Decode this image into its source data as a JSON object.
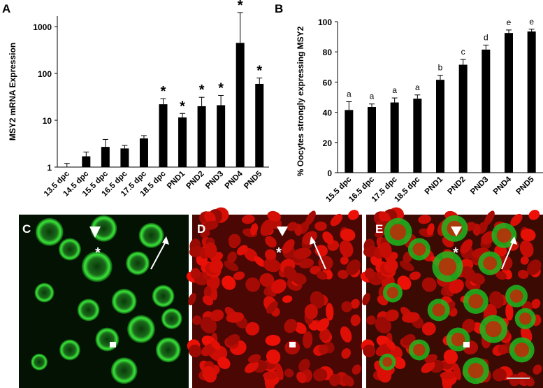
{
  "panels": {
    "a": "A",
    "b": "B",
    "c": "C",
    "d": "D",
    "e": "E"
  },
  "chart_data": [
    {
      "id": "A",
      "type": "bar",
      "ylabel": "MSY2  mRNA Expression",
      "yscale": "log",
      "ylim": [
        1,
        2000
      ],
      "yticks": [
        1,
        10,
        100,
        1000
      ],
      "categories": [
        "13.5 dpc",
        "14.5 dpc",
        "15.5 dpc",
        "16.5 dpc",
        "17.5 dpc",
        "18.5 dpc",
        "PND1",
        "PND2",
        "PND3",
        "PND4",
        "PND5"
      ],
      "values": [
        1.0,
        1.7,
        2.7,
        2.5,
        4.1,
        22,
        11.5,
        20,
        21,
        450,
        60
      ],
      "errors": [
        0.2,
        0.4,
        1.2,
        0.4,
        0.6,
        7,
        2.5,
        11,
        13,
        1550,
        20
      ],
      "annotations": [
        "",
        "",
        "",
        "",
        "",
        "*",
        "*",
        "*",
        "*",
        "*",
        "*"
      ],
      "bar_color": "#000000"
    },
    {
      "id": "B",
      "type": "bar",
      "ylabel": "% Oocytes strongly expressing MSY2",
      "ylim": [
        0,
        100
      ],
      "yticks": [
        0,
        20,
        40,
        60,
        80,
        100
      ],
      "categories": [
        "15.5 dpc",
        "16.5 dpc",
        "17.5 dpc",
        "18.5 dpc",
        "PND1",
        "PND2",
        "PND3",
        "PND4",
        "PND5"
      ],
      "values": [
        41.5,
        43.5,
        46.5,
        49,
        61.5,
        71.5,
        81.5,
        92.5,
        93.5
      ],
      "errors": [
        5.5,
        2.0,
        3.0,
        2.5,
        3.0,
        3.5,
        3.0,
        2.0,
        1.5
      ],
      "annotations": [
        "a",
        "a",
        "a",
        "a",
        "b",
        "c",
        "d",
        "e",
        "e"
      ],
      "bar_color": "#000000"
    }
  ],
  "micrographs": [
    {
      "panel": "C",
      "channel": "green",
      "markers": [
        "arrowhead",
        "arrow",
        "asterisk",
        "square"
      ]
    },
    {
      "panel": "D",
      "channel": "red",
      "markers": [
        "arrowhead",
        "arrow",
        "asterisk",
        "square"
      ]
    },
    {
      "panel": "E",
      "channel": "merge",
      "markers": [
        "arrowhead",
        "arrow",
        "asterisk",
        "square",
        "scale-bar"
      ]
    }
  ],
  "markers": {
    "asterisk": "*"
  },
  "colors": {
    "green": "#1fd41f",
    "red": "#d01006",
    "bar": "#000000"
  }
}
